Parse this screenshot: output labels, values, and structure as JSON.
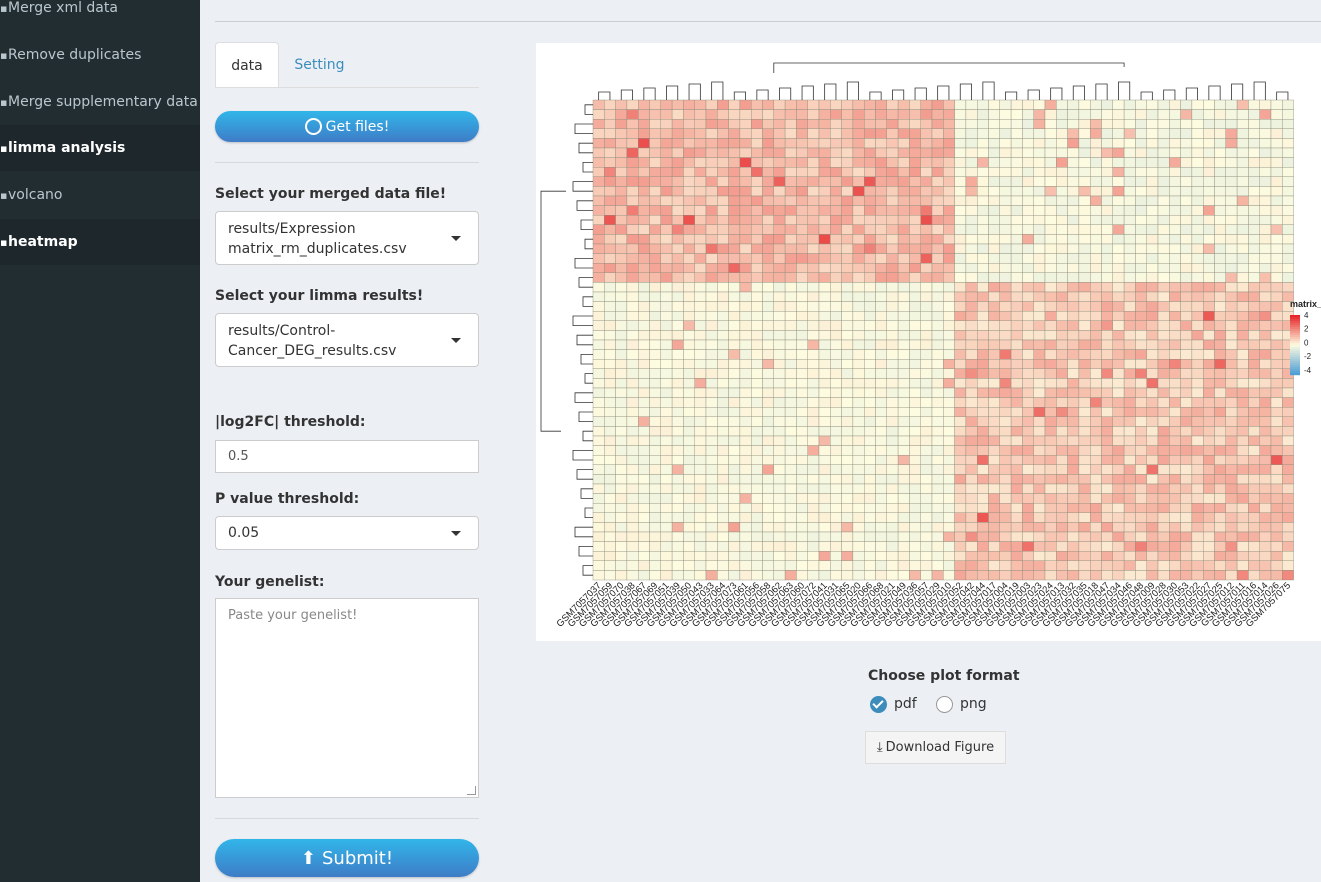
{
  "sidebar": {
    "items": [
      {
        "label": "Merge xml data",
        "icon": "chart-icon",
        "active": false
      },
      {
        "label": "Remove duplicates",
        "icon": "chart-icon",
        "active": false
      },
      {
        "label": "Merge supplementary data",
        "icon": "chart-icon",
        "active": false
      },
      {
        "label": "limma analysis",
        "icon": "chart-icon",
        "active": true
      },
      {
        "label": "volcano",
        "icon": "chart-icon",
        "active": false
      },
      {
        "label": "heatmap",
        "icon": "chart-icon",
        "active": true
      }
    ]
  },
  "tabs": [
    {
      "label": "data",
      "active": true
    },
    {
      "label": "Setting",
      "active": false
    }
  ],
  "get_files": {
    "label": "Get files!",
    "icon": "refresh-circle-icon"
  },
  "merged_file": {
    "label": "Select your merged data file!",
    "line1": "results/Expression",
    "line2": "matrix_rm_duplicates.csv"
  },
  "limma_results": {
    "label": "Select your limma results!",
    "line1": "results/Control-",
    "line2": "Cancer_DEG_results.csv"
  },
  "log2fc": {
    "label": "|log2FC| threshold:",
    "value": "0.5"
  },
  "pvalue": {
    "label": "P value threshold:",
    "value": "0.05"
  },
  "genelist": {
    "label": "Your genelist:",
    "placeholder": "Paste your genelist!"
  },
  "submit": {
    "label": "Submit!",
    "icon": "upload-icon"
  },
  "plot_format": {
    "title": "Choose plot format",
    "options": [
      {
        "label": "pdf",
        "selected": true
      },
      {
        "label": "png",
        "selected": false
      }
    ]
  },
  "download": {
    "label": "Download Figure",
    "icon": "download-icon"
  },
  "heatmap": {
    "legend_title": "matrix_",
    "legend_ticks": [
      "4",
      "2",
      "0",
      "-2",
      "-4"
    ],
    "colors": {
      "low": "#4f9ed5",
      "mid": "#fdfbe0",
      "high": "#e7262a"
    },
    "samples": [
      "GSM7057037",
      "GSM7057059",
      "GSM7057070",
      "GSM7057038",
      "GSM7057067",
      "GSM7057069",
      "GSM7057051",
      "GSM7057039",
      "GSM7057050",
      "GSM7057043",
      "GSM7057033",
      "GSM7057064",
      "GSM7057073",
      "GSM7057061",
      "GSM7057056",
      "GSM7057058",
      "GSM7057062",
      "GSM7057063",
      "GSM7057060",
      "GSM7057072",
      "GSM7057041",
      "GSM7057031",
      "GSM7057065",
      "GSM7057020",
      "GSM7057066",
      "GSM7057068",
      "GSM7057021",
      "GSM7057049",
      "GSM7057036",
      "GSM7057057",
      "GSM7057029",
      "GSM7057010",
      "GSM7057052",
      "GSM7057042",
      "GSM7057044",
      "GSM7057017",
      "GSM7057004",
      "GSM7057019",
      "GSM7057003",
      "GSM7057023",
      "GSM7057024",
      "GSM7057013",
      "GSM7057032",
      "GSM7057035",
      "GSM7057018",
      "GSM7057047",
      "GSM7057034",
      "GSM7057046",
      "GSM7057048",
      "GSM7057009",
      "GSM7057028",
      "GSM7057030",
      "GSM7057053",
      "GSM7057022",
      "GSM7057027",
      "GSM7057025",
      "GSM7057012",
      "GSM7057011",
      "GSM7057016",
      "GSM7057014",
      "GSM7057026",
      "GSM7057075"
    ]
  }
}
